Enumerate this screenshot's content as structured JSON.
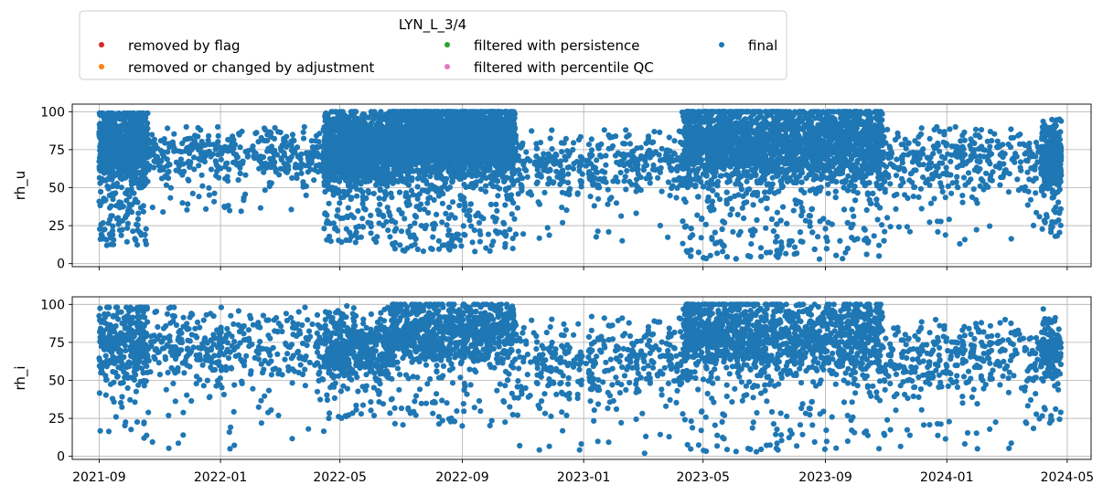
{
  "legend": {
    "title": "LYN_L_3/4",
    "entries": [
      {
        "label": "removed by flag",
        "color": "#d62728"
      },
      {
        "label": "removed or changed by adjustment",
        "color": "#ff7f0e"
      },
      {
        "label": "filtered with persistence",
        "color": "#2ca02c"
      },
      {
        "label": "filtered with percentile QC",
        "color": "#e377c2"
      },
      {
        "label": "final",
        "color": "#1f77b4"
      }
    ]
  },
  "chart_data": [
    {
      "type": "scatter",
      "ylabel": "rh_u",
      "ylim": [
        -2,
        105
      ],
      "yticks": [
        0,
        25,
        50,
        75,
        100
      ],
      "xlim": [
        "2021-08-05",
        "2024-05-25"
      ],
      "grid": true,
      "series": [
        {
          "name": "final",
          "color": "#1f77b4",
          "segments": [
            {
              "start": "2021-09-01",
              "end": "2021-10-20",
              "min": 12,
              "max": 99,
              "center": 78,
              "density": "dense"
            },
            {
              "start": "2021-10-20",
              "end": "2022-04-15",
              "min": 34,
              "max": 90,
              "center": 72,
              "density": "sparse"
            },
            {
              "start": "2022-04-15",
              "end": "2022-06-20",
              "min": 14,
              "max": 100,
              "center": 75,
              "density": "dense"
            },
            {
              "start": "2022-06-20",
              "end": "2022-10-25",
              "min": 8,
              "max": 100,
              "center": 82,
              "density": "dense"
            },
            {
              "start": "2022-10-25",
              "end": "2023-04-10",
              "min": 15,
              "max": 88,
              "center": 65,
              "density": "sparse"
            },
            {
              "start": "2023-04-10",
              "end": "2023-10-30",
              "min": 3,
              "max": 100,
              "center": 80,
              "density": "dense"
            },
            {
              "start": "2023-10-30",
              "end": "2024-04-05",
              "min": 13,
              "max": 90,
              "center": 68,
              "density": "sparse"
            },
            {
              "start": "2024-04-05",
              "end": "2024-04-25",
              "min": 18,
              "max": 95,
              "center": 70,
              "density": "dense"
            }
          ]
        }
      ]
    },
    {
      "type": "scatter",
      "ylabel": "rh_i",
      "ylim": [
        -2,
        105
      ],
      "yticks": [
        0,
        25,
        50,
        75,
        100
      ],
      "xlim": [
        "2021-08-05",
        "2024-05-25"
      ],
      "xticks": [
        "2021-09",
        "2022-01",
        "2022-05",
        "2022-09",
        "2023-01",
        "2023-05",
        "2023-09",
        "2024-01",
        "2024-05"
      ],
      "grid": true,
      "series": [
        {
          "name": "final",
          "color": "#1f77b4",
          "segments": [
            {
              "start": "2021-09-01",
              "end": "2021-10-20",
              "min": 12,
              "max": 98,
              "center": 75,
              "density": "medium"
            },
            {
              "start": "2021-10-20",
              "end": "2022-04-15",
              "min": 5,
              "max": 98,
              "center": 72,
              "density": "sparse"
            },
            {
              "start": "2022-04-15",
              "end": "2022-06-20",
              "min": 25,
              "max": 99,
              "center": 70,
              "density": "medium"
            },
            {
              "start": "2022-06-20",
              "end": "2022-10-25",
              "min": 20,
              "max": 100,
              "center": 82,
              "density": "medium"
            },
            {
              "start": "2022-10-25",
              "end": "2023-04-10",
              "min": 2,
              "max": 92,
              "center": 62,
              "density": "sparse"
            },
            {
              "start": "2023-04-10",
              "end": "2023-10-30",
              "min": 3,
              "max": 100,
              "center": 80,
              "density": "medium"
            },
            {
              "start": "2023-10-30",
              "end": "2024-04-05",
              "min": 5,
              "max": 90,
              "center": 65,
              "density": "sparse"
            },
            {
              "start": "2024-04-05",
              "end": "2024-04-25",
              "min": 22,
              "max": 97,
              "center": 70,
              "density": "medium"
            }
          ]
        }
      ]
    }
  ]
}
